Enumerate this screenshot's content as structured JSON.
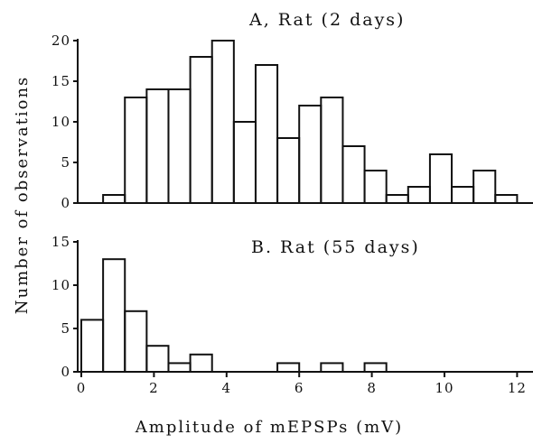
{
  "chart_data": [
    {
      "type": "bar",
      "title": "A,  Rat (2 days)",
      "xlabel": "Amplitude of mEPSPs (mV)",
      "ylabel": "Number of observations",
      "bin_width": 0.6,
      "bin_starts": [
        0.6,
        1.2,
        1.8,
        2.4,
        3.0,
        3.6,
        4.2,
        4.8,
        5.4,
        6.0,
        6.6,
        7.2,
        7.8,
        8.4,
        9.0,
        9.6,
        10.2,
        10.8,
        11.4,
        12.0
      ],
      "values": [
        1,
        13,
        14,
        14,
        18,
        20,
        10,
        17,
        8,
        12,
        13,
        7,
        4,
        1,
        2,
        6,
        2,
        4,
        1,
        0
      ],
      "xlim": [
        0,
        12.5
      ],
      "ylim": [
        0,
        20
      ],
      "y_ticks": [
        "0",
        "5",
        "10",
        "15",
        "20"
      ],
      "grid": false
    },
    {
      "type": "bar",
      "title": "B.  Rat (55 days)",
      "xlabel": "Amplitude of mEPSPs (mV)",
      "ylabel": "Number of observations",
      "bin_width": 0.6,
      "bin_starts": [
        0.0,
        0.6,
        1.2,
        1.8,
        2.4,
        3.0,
        3.6,
        5.4,
        6.0,
        6.6,
        7.2,
        7.8,
        8.4
      ],
      "values": [
        6,
        13,
        7,
        3,
        1,
        2,
        0,
        1,
        0,
        1,
        0,
        1,
        0
      ],
      "xlim": [
        0,
        12.5
      ],
      "ylim": [
        0,
        15
      ],
      "y_ticks": [
        "0",
        "5",
        "10",
        "15"
      ],
      "x_ticks": [
        "0",
        "2",
        "4",
        "6",
        "8",
        "10",
        "12"
      ],
      "grid": false
    }
  ]
}
